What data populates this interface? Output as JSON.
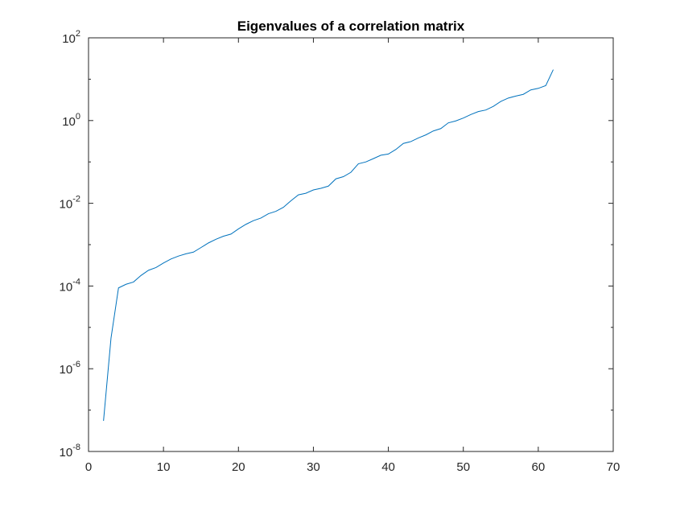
{
  "chart_data": {
    "type": "line",
    "title": "Eigenvalues of a correlation matrix",
    "xlabel": "",
    "ylabel": "",
    "y_scale": "log",
    "xlim": [
      0,
      70
    ],
    "ylim": [
      1e-08,
      100
    ],
    "x_ticks": [
      "0",
      "10",
      "20",
      "30",
      "40",
      "50",
      "60",
      "70"
    ],
    "y_ticks": [
      {
        "base": "10",
        "exp": "-8",
        "value": 1e-08
      },
      {
        "base": "10",
        "exp": "-6",
        "value": 1e-06
      },
      {
        "base": "10",
        "exp": "-4",
        "value": 0.0001
      },
      {
        "base": "10",
        "exp": "-2",
        "value": 0.01
      },
      {
        "base": "10",
        "exp": "0",
        "value": 1
      },
      {
        "base": "10",
        "exp": "2",
        "value": 100
      }
    ],
    "grid": false,
    "series": [
      {
        "color": "#0072BD",
        "x": [
          2,
          3,
          4,
          5,
          6,
          7,
          8,
          9,
          10,
          11,
          12,
          13,
          14,
          15,
          16,
          17,
          18,
          19,
          20,
          21,
          22,
          23,
          24,
          25,
          26,
          27,
          28,
          29,
          30,
          31,
          32,
          33,
          34,
          35,
          36,
          37,
          38,
          39,
          40,
          41,
          42,
          43,
          44,
          45,
          46,
          47,
          48,
          49,
          50,
          51,
          52,
          53,
          54,
          55,
          56,
          57,
          58,
          59,
          60,
          61,
          62
        ],
        "y": [
          5.5e-08,
          5.5e-06,
          9e-05,
          0.00011,
          0.000125,
          0.00018,
          0.00024,
          0.00028,
          0.00036,
          0.00045,
          0.00053,
          0.0006,
          0.00066,
          0.00085,
          0.0011,
          0.00135,
          0.0016,
          0.0018,
          0.0024,
          0.0031,
          0.0038,
          0.0044,
          0.0056,
          0.0064,
          0.008,
          0.0115,
          0.016,
          0.0175,
          0.021,
          0.023,
          0.026,
          0.039,
          0.044,
          0.056,
          0.09,
          0.1,
          0.12,
          0.145,
          0.155,
          0.2,
          0.28,
          0.31,
          0.38,
          0.45,
          0.56,
          0.64,
          0.88,
          0.98,
          1.15,
          1.4,
          1.65,
          1.8,
          2.2,
          2.9,
          3.5,
          3.9,
          4.3,
          5.5,
          6.0,
          7.0,
          17.0
        ]
      }
    ]
  }
}
